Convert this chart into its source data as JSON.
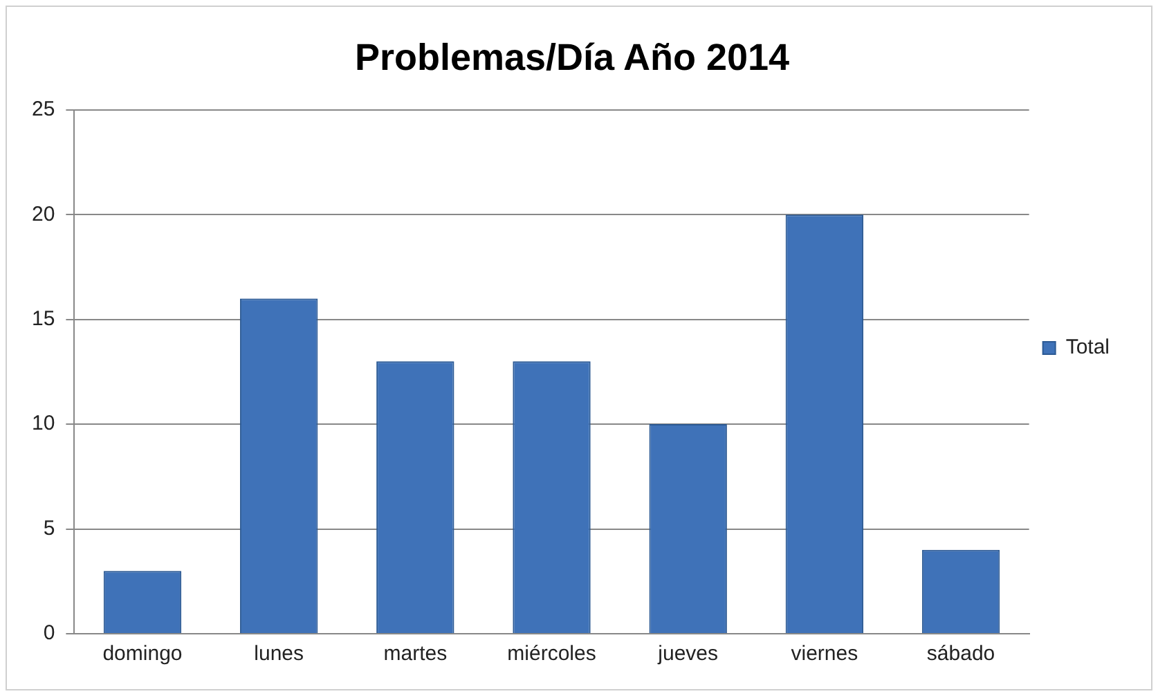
{
  "chart_data": {
    "type": "bar",
    "title": "Problemas/Día Año 2014",
    "categories": [
      "domingo",
      "lunes",
      "martes",
      "miércoles",
      "jueves",
      "viernes",
      "sábado"
    ],
    "series": [
      {
        "name": "Total",
        "color": "#3f72b8",
        "values": [
          3,
          16,
          13,
          13,
          10,
          20,
          4
        ]
      }
    ],
    "ylim": [
      0,
      25
    ],
    "yticks": [
      0,
      5,
      10,
      15,
      20,
      25
    ],
    "grid": "y",
    "legend": "right"
  }
}
